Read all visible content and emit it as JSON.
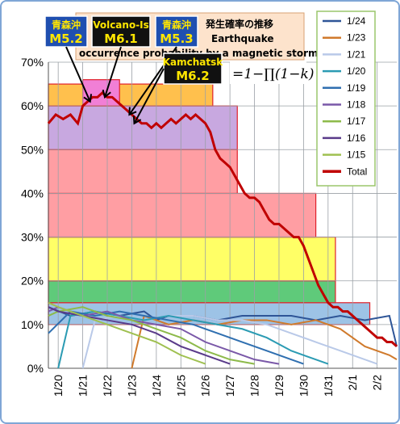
{
  "chart_data": {
    "type": "line",
    "title": "発生確率の推移",
    "subtitle_lines": [
      "Earthquake",
      "occurrence probability by a magnetic storm."
    ],
    "formula": "=1−∏(1−k)",
    "xlabel": "",
    "ylabel": "",
    "x_ticks": [
      "1/20",
      "1/21",
      "1/22",
      "1/23",
      "1/24",
      "1/25",
      "1/26",
      "1/27",
      "1/28",
      "1/29",
      "1/30",
      "1/31",
      "2/1",
      "2/2"
    ],
    "y_ticks": [
      "0%",
      "10%",
      "20%",
      "30%",
      "40%",
      "50%",
      "60%",
      "70%"
    ],
    "ylim": [
      0,
      70
    ],
    "xlim": [
      "1/19.6",
      "2/2.7"
    ],
    "grid": true,
    "legend_position": "right",
    "legend": [
      {
        "name": "1/24",
        "color": "#2e5597"
      },
      {
        "name": "1/23",
        "color": "#d07a2c"
      },
      {
        "name": "1/21",
        "color": "#b9c9e8"
      },
      {
        "name": "1/20",
        "color": "#2b9bb3"
      },
      {
        "name": "1/19",
        "color": "#2f6fb0"
      },
      {
        "name": "1/18",
        "color": "#7a58a8"
      },
      {
        "name": "1/17",
        "color": "#8dba4a"
      },
      {
        "name": "1/16",
        "color": "#5a3b8a"
      },
      {
        "name": "1/15",
        "color": "#9fc050"
      },
      {
        "name": "Total",
        "color": "#c00000"
      }
    ],
    "bands": [
      {
        "x0": "1/19.6",
        "x1": "2/1.7",
        "y0": 10,
        "y1": 15,
        "fill": "#9dc3e6"
      },
      {
        "x0": "1/19.6",
        "x1": "1/31.3",
        "y0": 15,
        "y1": 20,
        "fill": "#5fca7a"
      },
      {
        "x0": "1/19.6",
        "x1": "1/31.3",
        "y0": 20,
        "y1": 30,
        "fill": "#ffff66"
      },
      {
        "x0": "1/19.6",
        "x1": "1/30.5",
        "y0": 30,
        "y1": 40,
        "fill": "#ff9ea3"
      },
      {
        "x0": "1/19.6",
        "x1": "1/27.3",
        "y0": 40,
        "y1": 50,
        "fill": "#ff9ea3"
      },
      {
        "x0": "1/19.6",
        "x1": "1/27.3",
        "y0": 50,
        "y1": 60,
        "fill": "#c8a8e0"
      },
      {
        "x0": "1/19.6",
        "x1": "1/26.3",
        "y0": 60,
        "y1": 65,
        "fill": "#ffc04d"
      },
      {
        "x0": "1/21",
        "x1": "1/22.5",
        "y0": 60,
        "y1": 66,
        "fill": "#f17fd6"
      }
    ],
    "total_series": {
      "name": "Total",
      "x": [
        19.6,
        19.9,
        20.2,
        20.5,
        20.8,
        21.0,
        21.2,
        21.4,
        21.6,
        21.8,
        22.0,
        22.2,
        22.4,
        22.6,
        22.8,
        23.0,
        23.2,
        23.4,
        23.6,
        23.8,
        24.0,
        24.2,
        24.4,
        24.6,
        24.8,
        25.0,
        25.2,
        25.4,
        25.6,
        25.8,
        26.0,
        26.2,
        26.4,
        26.6,
        26.8,
        27.0,
        27.2,
        27.4,
        27.6,
        27.8,
        28.0,
        28.2,
        28.4,
        28.6,
        28.8,
        29.0,
        29.2,
        29.4,
        29.6,
        29.8,
        30.0,
        30.2,
        30.4,
        30.6,
        30.8,
        31.0,
        31.2,
        31.4,
        31.6,
        31.8,
        32.0,
        32.2,
        32.4,
        32.6,
        32.8,
        33.0,
        33.2,
        33.4,
        33.6,
        33.8
      ],
      "y": [
        56,
        58,
        57,
        58,
        56,
        60,
        61,
        62,
        62,
        63,
        62,
        62,
        61,
        60,
        59,
        58,
        57,
        56,
        56,
        55,
        56,
        55,
        56,
        57,
        56,
        57,
        58,
        57,
        58,
        57,
        56,
        54,
        50,
        48,
        47,
        46,
        44,
        42,
        40,
        39,
        39,
        38,
        36,
        34,
        33,
        33,
        32,
        31,
        30,
        30,
        28,
        25,
        22,
        19,
        17,
        15,
        14,
        14,
        13,
        13,
        12,
        11,
        10,
        9,
        8,
        7,
        7,
        6,
        6,
        5
      ]
    },
    "annotations": [
      {
        "text_top": "青森沖",
        "text_bottom": "M5.2",
        "bg": "#1f4fb0",
        "fg": "#ffe600",
        "target": [
          21.3,
          61
        ]
      },
      {
        "text_top": "Volcano-Is",
        "text_bottom": "M6.1",
        "bg": "#111111",
        "fg": "#ffe600",
        "target": [
          21.9,
          62
        ]
      },
      {
        "text_top": "青森沖",
        "text_bottom": "M5.3",
        "bg": "#1f4fb0",
        "fg": "#ffe600",
        "target": [
          22.9,
          58
        ]
      },
      {
        "text_top": "Kamchatsk",
        "text_bottom": "M6.2",
        "bg": "#111111",
        "fg": "#ffe600",
        "target": [
          23.1,
          56
        ]
      }
    ],
    "daily_series": [
      {
        "name": "1/24",
        "color": "#2e5597",
        "x": [
          19.6,
          20.5,
          21.5,
          22.5,
          23.5,
          24.0,
          24.5,
          25.5,
          26.5,
          27.5,
          28.5,
          29.5,
          30.5,
          31.5,
          32.5,
          33.5,
          33.8
        ],
        "y": [
          14,
          12,
          13,
          12,
          13,
          11,
          12,
          12,
          11,
          12,
          12,
          12,
          11,
          12,
          11,
          12,
          5
        ]
      },
      {
        "name": "1/23",
        "color": "#d07a2c",
        "x": [
          23.0,
          23.5,
          24.5,
          25.5,
          26.5,
          27.5,
          28.5,
          29.5,
          30.5,
          31.5,
          32.5,
          33.5,
          33.8
        ],
        "y": [
          0,
          12,
          10,
          11,
          10,
          11,
          11,
          10,
          11,
          9,
          5,
          3,
          2
        ]
      },
      {
        "name": "1/21",
        "color": "#b9c9e8",
        "x": [
          21.0,
          21.5,
          22.5,
          23.5,
          24.5,
          25.5,
          26.5,
          27.5,
          28.5,
          29.5,
          30.5,
          31.5,
          32.5,
          33.0
        ],
        "y": [
          0,
          11,
          12,
          11,
          12,
          12,
          11,
          11,
          10,
          8,
          6,
          4,
          2,
          1
        ]
      },
      {
        "name": "1/20",
        "color": "#2b9bb3",
        "x": [
          20.0,
          20.5,
          21.5,
          22.5,
          23.5,
          24.5,
          25.5,
          26.5,
          27.5,
          28.5,
          29.5,
          30.5,
          31.0
        ],
        "y": [
          0,
          12,
          13,
          12,
          11,
          12,
          11,
          10,
          9,
          7,
          4,
          2,
          1
        ]
      },
      {
        "name": "1/19",
        "color": "#2f6fb0",
        "x": [
          19.6,
          20.5,
          21.5,
          22.5,
          23.5,
          24.5,
          25.5,
          26.5,
          27.5,
          28.5,
          29.5,
          30.0
        ],
        "y": [
          8,
          13,
          12,
          13,
          12,
          11,
          10,
          8,
          6,
          4,
          2,
          1
        ]
      },
      {
        "name": "1/18",
        "color": "#7a58a8",
        "x": [
          19.6,
          20.0,
          21.0,
          22.0,
          23.0,
          24.0,
          25.0,
          26.0,
          27.0,
          28.0,
          29.0
        ],
        "y": [
          13,
          14,
          12,
          13,
          11,
          10,
          9,
          6,
          4,
          2,
          1
        ]
      },
      {
        "name": "1/17",
        "color": "#8dba4a",
        "x": [
          19.6,
          20.0,
          21.0,
          22.0,
          23.0,
          24.0,
          25.0,
          26.0,
          27.0,
          28.0
        ],
        "y": [
          12,
          13,
          14,
          12,
          11,
          9,
          7,
          4,
          2,
          1
        ]
      },
      {
        "name": "1/16",
        "color": "#5a3b8a",
        "x": [
          19.6,
          20.0,
          21.0,
          22.0,
          23.0,
          24.0,
          25.0,
          26.0,
          27.0
        ],
        "y": [
          14,
          13,
          12,
          11,
          10,
          8,
          5,
          3,
          1
        ]
      },
      {
        "name": "1/15",
        "color": "#9fc050",
        "x": [
          19.6,
          20.0,
          21.0,
          22.0,
          23.0,
          24.0,
          25.0,
          26.0
        ],
        "y": [
          15,
          14,
          12,
          10,
          8,
          6,
          3,
          1
        ]
      }
    ]
  }
}
